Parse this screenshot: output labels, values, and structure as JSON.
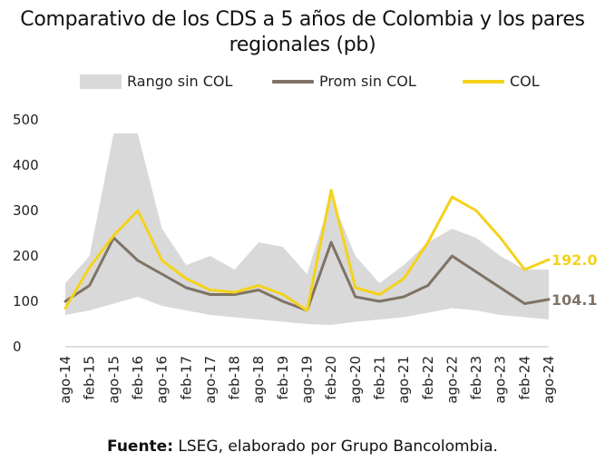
{
  "chart_data": {
    "type": "line",
    "title": "Comparativo de los CDS a 5 años de Colombia y los pares regionales (pb)",
    "ylim": [
      0,
      500
    ],
    "yticks": [
      "0",
      "100",
      "200",
      "300",
      "400",
      "500"
    ],
    "x_labels": [
      "ago-14",
      "feb-15",
      "ago-15",
      "feb-16",
      "ago-16",
      "feb-17",
      "ago-17",
      "feb-18",
      "ago-18",
      "feb-19",
      "ago-19",
      "feb-20",
      "ago-20",
      "feb-21",
      "ago-21",
      "feb-22",
      "ago-22",
      "feb-23",
      "ago-23",
      "feb-24",
      "ago-24"
    ],
    "grid": false,
    "legend_position": "top",
    "series": [
      {
        "name": "Rango sin COL",
        "kind": "band",
        "color": "#d9d9d9",
        "x": [
          0,
          1,
          2,
          3,
          4,
          5,
          6,
          7,
          8,
          9,
          10,
          11,
          12,
          13,
          14,
          15,
          16,
          17,
          18,
          19,
          20
        ],
        "low": [
          70,
          80,
          95,
          110,
          90,
          80,
          70,
          65,
          60,
          55,
          50,
          48,
          55,
          60,
          65,
          75,
          85,
          80,
          70,
          65,
          60
        ],
        "high": [
          140,
          200,
          470,
          470,
          260,
          180,
          200,
          170,
          230,
          220,
          160,
          330,
          200,
          140,
          180,
          230,
          260,
          240,
          200,
          170,
          170
        ]
      },
      {
        "name": "Prom sin COL",
        "kind": "line",
        "color": "#7f7366",
        "x": [
          0,
          1,
          2,
          3,
          4,
          5,
          6,
          7,
          8,
          9,
          10,
          11,
          12,
          13,
          14,
          15,
          16,
          17,
          18,
          19,
          20
        ],
        "values": [
          100,
          135,
          240,
          190,
          160,
          130,
          115,
          115,
          125,
          100,
          80,
          230,
          110,
          100,
          110,
          135,
          200,
          165,
          130,
          95,
          104.1
        ]
      },
      {
        "name": "COL",
        "kind": "line",
        "color": "#f5d21a",
        "x": [
          0,
          1,
          2,
          3,
          4,
          5,
          6,
          7,
          8,
          9,
          10,
          11,
          12,
          13,
          14,
          15,
          16,
          17,
          18,
          19,
          20
        ],
        "values": [
          85,
          175,
          245,
          300,
          190,
          150,
          125,
          120,
          135,
          115,
          80,
          345,
          130,
          115,
          150,
          230,
          330,
          300,
          240,
          170,
          192.0
        ]
      }
    ],
    "end_labels": [
      {
        "series": "COL",
        "text": "192.0",
        "color": "#f5d21a"
      },
      {
        "series": "Prom sin COL",
        "text": "104.1",
        "color": "#7f7366"
      }
    ]
  },
  "legend": {
    "band_label": "Rango sin COL",
    "avg_label": "Prom sin COL",
    "col_label": "COL"
  },
  "source": {
    "prefix": "Fuente:",
    "text": " LSEG, elaborado por Grupo Bancolombia."
  }
}
